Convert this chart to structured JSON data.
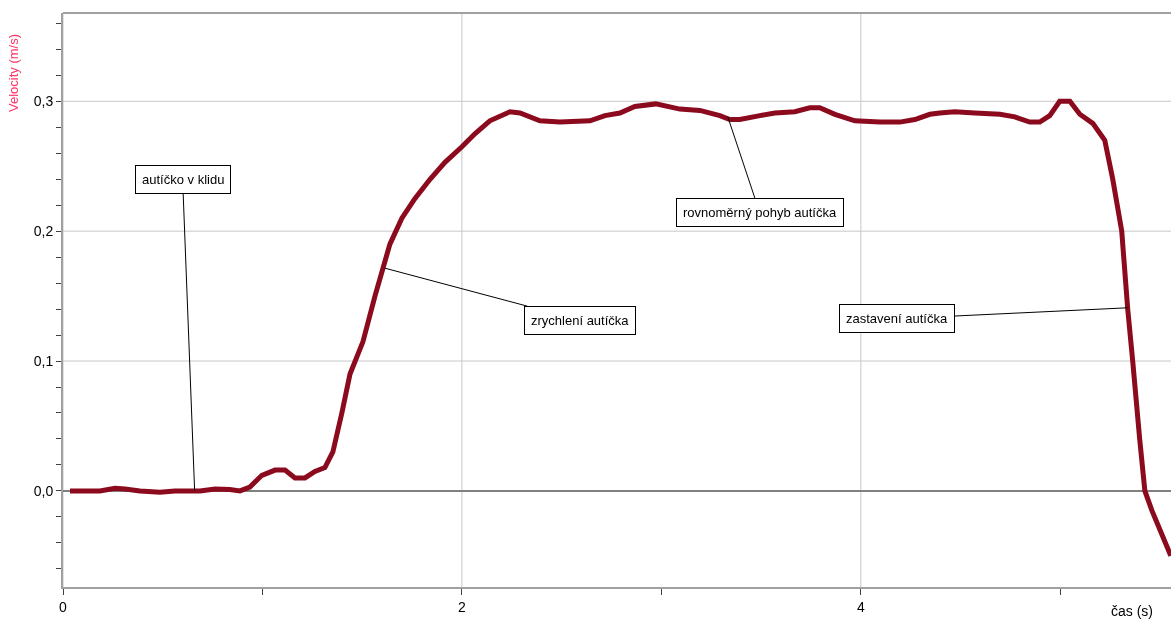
{
  "chart_data": {
    "type": "line",
    "xlabel": "čas (s)",
    "ylabel": "Velocity (m/s)",
    "x": [
      0.035,
      0.185,
      0.261,
      0.311,
      0.386,
      0.486,
      0.561,
      0.687,
      0.762,
      0.837,
      0.887,
      0.937,
      0.997,
      1.063,
      1.113,
      1.163,
      1.213,
      1.263,
      1.313,
      1.353,
      1.398,
      1.439,
      1.504,
      1.564,
      1.639,
      1.699,
      1.764,
      1.84,
      1.915,
      2.0,
      2.065,
      2.14,
      2.241,
      2.291,
      2.391,
      2.491,
      2.642,
      2.717,
      2.792,
      2.867,
      2.972,
      3.093,
      3.193,
      3.293,
      3.343,
      3.393,
      3.494,
      3.569,
      3.669,
      3.744,
      3.794,
      3.87,
      3.97,
      4.095,
      4.195,
      4.271,
      4.346,
      4.396,
      4.471,
      4.571,
      4.697,
      4.772,
      4.847,
      4.897,
      4.947,
      4.997,
      5.048,
      5.098,
      5.163,
      5.223,
      5.263,
      5.308,
      5.338,
      5.363,
      5.398,
      5.424,
      5.459,
      5.554
    ],
    "series": [
      {
        "color": "#8b0a1e",
        "values": [
          0,
          0,
          0.002,
          0.0015,
          0,
          -0.001,
          0,
          0,
          0.0015,
          0.001,
          0,
          0.003,
          0.012,
          0.016,
          0.016,
          0.01,
          0.01,
          0.015,
          0.018,
          0.03,
          0.06,
          0.09,
          0.115,
          0.15,
          0.19,
          0.21,
          0.225,
          0.24,
          0.253,
          0.265,
          0.275,
          0.285,
          0.292,
          0.291,
          0.285,
          0.284,
          0.285,
          0.289,
          0.291,
          0.296,
          0.298,
          0.294,
          0.293,
          0.289,
          0.286,
          0.286,
          0.289,
          0.291,
          0.292,
          0.295,
          0.295,
          0.29,
          0.285,
          0.284,
          0.284,
          0.286,
          0.29,
          0.291,
          0.292,
          0.291,
          0.29,
          0.288,
          0.284,
          0.284,
          0.289,
          0.3,
          0.3,
          0.29,
          0.283,
          0.27,
          0.24,
          0.2,
          0.14,
          0.1,
          0.04,
          0,
          -0.015,
          -0.05
        ]
      }
    ],
    "xlim": [
      0,
      5.555
    ],
    "ylim": [
      -0.074,
      0.368
    ],
    "xticks": [
      {
        "value": 0,
        "label": "0"
      },
      {
        "value": 1,
        "label": null
      },
      {
        "value": 2,
        "label": "2"
      },
      {
        "value": 3,
        "label": null
      },
      {
        "value": 4,
        "label": "4"
      },
      {
        "value": 5,
        "label": null
      }
    ],
    "yticks": [
      {
        "value": -0.06,
        "label": null
      },
      {
        "value": -0.04,
        "label": null
      },
      {
        "value": -0.02,
        "label": null
      },
      {
        "value": 0,
        "label": "0,0"
      },
      {
        "value": 0.02,
        "label": null
      },
      {
        "value": 0.04,
        "label": null
      },
      {
        "value": 0.06,
        "label": null
      },
      {
        "value": 0.08,
        "label": null
      },
      {
        "value": 0.1,
        "label": "0,1"
      },
      {
        "value": 0.12,
        "label": null
      },
      {
        "value": 0.14,
        "label": null
      },
      {
        "value": 0.16,
        "label": null
      },
      {
        "value": 0.18,
        "label": null
      },
      {
        "value": 0.2,
        "label": "0,2"
      },
      {
        "value": 0.22,
        "label": null
      },
      {
        "value": 0.24,
        "label": null
      },
      {
        "value": 0.26,
        "label": null
      },
      {
        "value": 0.28,
        "label": null
      },
      {
        "value": 0.3,
        "label": "0,3"
      },
      {
        "value": 0.32,
        "label": null
      },
      {
        "value": 0.34,
        "label": null
      },
      {
        "value": 0.36,
        "label": null
      }
    ],
    "grid": true,
    "marker": "none",
    "line_style": "solid",
    "legend": false,
    "ref_lines": [
      {
        "axis": "y",
        "value": 0,
        "color": "#808080"
      }
    ],
    "annotations": [
      {
        "text": "autíčko v klidu",
        "x": 0.66,
        "y": 0
      },
      {
        "text": "zrychlení autíčka",
        "x": 1.614,
        "y": 0.1715
      },
      {
        "text": "rovnoměrný pohyb autíčka",
        "x": 3.333,
        "y": 0.288
      },
      {
        "text": "zastavení autíčka",
        "x": 5.338,
        "y": 0.141
      }
    ]
  }
}
